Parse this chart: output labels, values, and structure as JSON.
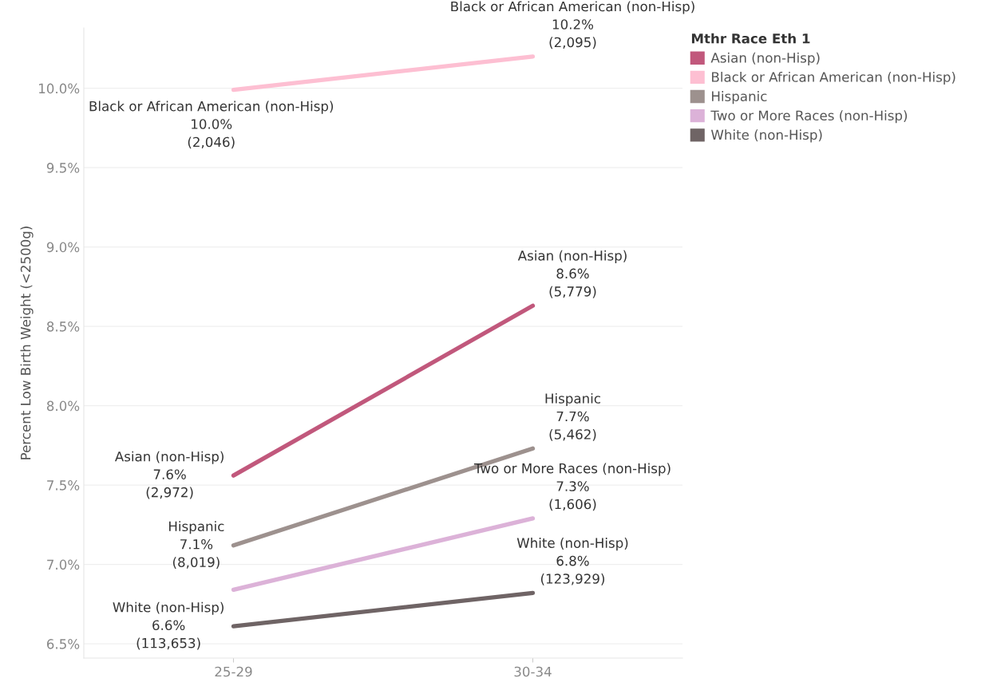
{
  "chart_data": {
    "type": "line",
    "ylabel": "Percent Low Birth Weight (<2500g)",
    "legend_title": "Mthr Race Eth 1",
    "legend": "top right",
    "categories": [
      "25-29",
      "30-34"
    ],
    "series": [
      {
        "name": "Asian (non-Hisp)",
        "color": "#c1587c",
        "values": [
          7.56,
          8.63
        ],
        "value_labels": [
          "Asian (non-Hisp)\n7.6%\n(2,972)",
          "Asian (non-Hisp)\n8.6%\n(5,779)"
        ]
      },
      {
        "name": "Black or African American (non-Hisp)",
        "color": "#fdbfd2",
        "values": [
          9.99,
          10.2
        ],
        "value_labels": [
          "Black or African American (non-Hisp)\n10.0%\n(2,046)",
          "Black or African American (non-Hisp)\n10.2%\n(2,095)"
        ]
      },
      {
        "name": "Hispanic",
        "color": "#9d918e",
        "values": [
          7.12,
          7.73
        ],
        "value_labels": [
          "Hispanic\n7.1%\n(8,019)",
          "Hispanic\n7.7%\n(5,462)"
        ]
      },
      {
        "name": "Two or More Races (non-Hisp)",
        "color": "#dcb2d8",
        "values": [
          6.84,
          7.29
        ],
        "value_labels": [
          null,
          "Two or More Races (non-Hisp)\n7.3%\n(1,606)"
        ]
      },
      {
        "name": "White (non-Hisp)",
        "color": "#6f6465",
        "values": [
          6.61,
          6.82
        ],
        "value_labels": [
          "White (non-Hisp)\n6.6%\n(113,653)",
          "White (non-Hisp)\n6.8%\n(123,929)"
        ]
      }
    ],
    "ylim": [
      6.41,
      10.38
    ],
    "yticks": [
      {
        "value": 6.5,
        "label": "6.5%"
      },
      {
        "value": 7.0,
        "label": "7.0%"
      },
      {
        "value": 7.5,
        "label": "7.5%"
      },
      {
        "value": 8.0,
        "label": "8.0%"
      },
      {
        "value": 8.5,
        "label": "8.5%"
      },
      {
        "value": 9.0,
        "label": "9.0%"
      },
      {
        "value": 9.5,
        "label": "9.5%"
      },
      {
        "value": 10.0,
        "label": "10.0%"
      }
    ],
    "grid": "y",
    "marker": "none",
    "line_style": "solid"
  }
}
